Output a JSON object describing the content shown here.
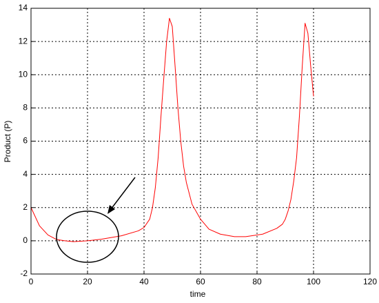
{
  "chart_data": {
    "type": "line",
    "xlabel": "time",
    "ylabel": "Product (P)",
    "x": [
      0,
      3,
      6,
      9,
      12,
      15,
      20,
      25,
      32,
      38,
      40,
      42,
      43,
      44,
      45,
      46,
      47,
      48,
      49,
      50,
      51,
      52,
      53,
      54,
      55,
      57,
      60,
      63,
      67,
      72,
      76,
      82,
      87,
      89,
      90,
      91,
      92,
      93,
      94,
      95,
      96,
      97,
      98,
      99,
      100
    ],
    "values": [
      2,
      0.9,
      0.35,
      0.08,
      0,
      -0.05,
      0,
      0.1,
      0.3,
      0.6,
      0.8,
      1.3,
      2,
      3.2,
      5,
      7.5,
      9.8,
      12,
      13.4,
      12.9,
      10.5,
      8,
      6,
      4.5,
      3.5,
      2.2,
      1.3,
      0.7,
      0.4,
      0.25,
      0.25,
      0.4,
      0.75,
      1,
      1.3,
      1.8,
      2.5,
      3.6,
      5,
      7.5,
      10.5,
      13.1,
      12.5,
      10.5,
      8.7
    ],
    "color": "#ff0000",
    "xlim": [
      0,
      120
    ],
    "xticks": [
      0,
      20,
      40,
      60,
      80,
      100,
      120
    ],
    "ylim": [
      -2,
      14
    ],
    "yticks": [
      -2,
      0,
      2,
      4,
      6,
      8,
      10,
      12,
      14
    ],
    "grid": true
  }
}
